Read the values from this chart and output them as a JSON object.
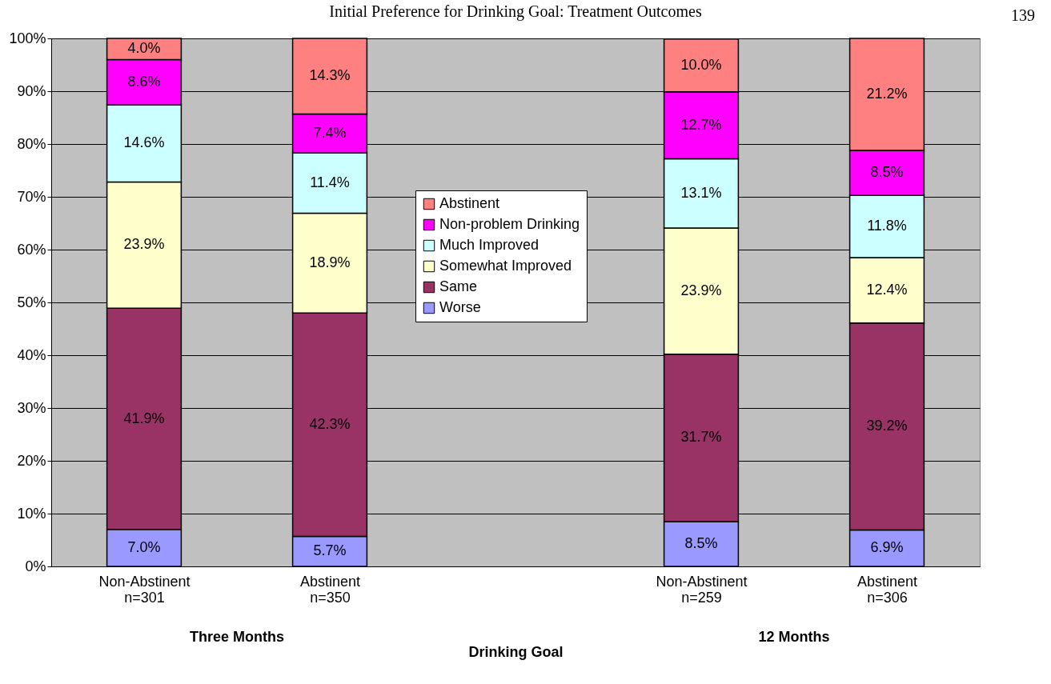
{
  "chart_data": {
    "type": "bar",
    "title": "Initial Preference for Drinking Goal: Treatment Outcomes",
    "xlabel": "Drinking Goal",
    "categories": [
      "Non-Abstinent\nn=301",
      "Abstinent\nn=350",
      null,
      "Non-Abstinent\nn=259",
      "Abstinent\nn=306"
    ],
    "stacked": true,
    "grid": "y",
    "legend": "center",
    "ylim": [
      0,
      100
    ],
    "yticks": [
      {
        "value": 0,
        "label": "0%"
      },
      {
        "value": 10,
        "label": "10%"
      },
      {
        "value": 20,
        "label": "20%"
      },
      {
        "value": 30,
        "label": "30%"
      },
      {
        "value": 40,
        "label": "40%"
      },
      {
        "value": 50,
        "label": "50%"
      },
      {
        "value": 60,
        "label": "60%"
      },
      {
        "value": 70,
        "label": "70%"
      },
      {
        "value": 80,
        "label": "80%"
      },
      {
        "value": 90,
        "label": "90%"
      },
      {
        "value": 100,
        "label": "100%"
      }
    ],
    "series": [
      {
        "name": "Worse",
        "color": "#9999ff",
        "values": [
          7.0,
          5.7,
          null,
          8.5,
          6.9
        ],
        "value_labels": [
          "7.0%",
          "5.7%",
          null,
          "8.5%",
          "6.9%"
        ]
      },
      {
        "name": "Same",
        "color": "#993366",
        "values": [
          41.9,
          42.3,
          null,
          31.7,
          39.2
        ],
        "value_labels": [
          "41.9%",
          "42.3%",
          null,
          "31.7%",
          "39.2%"
        ]
      },
      {
        "name": "Somewhat Improved",
        "color": "#ffffcc",
        "values": [
          23.9,
          18.9,
          null,
          23.9,
          12.4
        ],
        "value_labels": [
          "23.9%",
          "18.9%",
          null,
          "23.9%",
          "12.4%"
        ]
      },
      {
        "name": "Much Improved",
        "color": "#ccffff",
        "values": [
          14.6,
          11.4,
          null,
          13.1,
          11.8
        ],
        "value_labels": [
          "14.6%",
          "11.4%",
          null,
          "13.1%",
          "11.8%"
        ]
      },
      {
        "name": "Non-problem Drinking",
        "color": "#ff00ff",
        "values": [
          8.6,
          7.4,
          null,
          12.7,
          8.5
        ],
        "value_labels": [
          "8.6%",
          "7.4%",
          null,
          "12.7%",
          "8.5%"
        ]
      },
      {
        "name": "Abstinent",
        "color": "#ff8080",
        "values": [
          4.0,
          14.3,
          null,
          10.0,
          21.2
        ],
        "value_labels": [
          "4.0%",
          "14.3%",
          null,
          "10.0%",
          "21.2%"
        ]
      }
    ],
    "annotations": [
      "Three Months",
      "12 Months",
      "139"
    ]
  }
}
